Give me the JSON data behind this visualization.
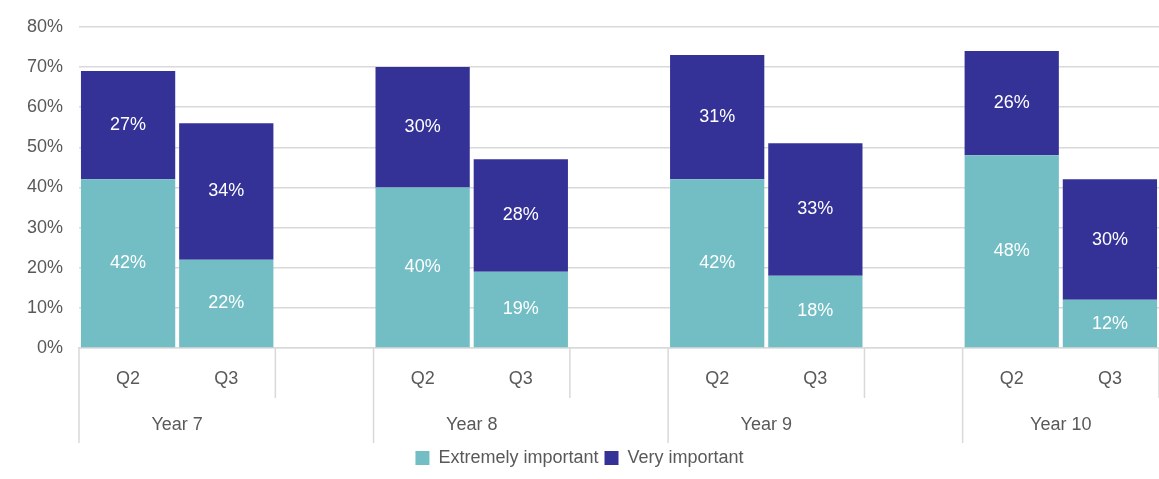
{
  "chart_data": {
    "type": "bar",
    "stacked": true,
    "categories": [
      "Q2",
      "Q3",
      null,
      "Q2",
      "Q3",
      null,
      "Q2",
      "Q3",
      null,
      "Q2",
      "Q3"
    ],
    "series": [
      {
        "name": "Extremely important",
        "color": "#72bec4",
        "values": [
          42,
          22,
          null,
          40,
          19,
          null,
          42,
          18,
          null,
          48,
          12
        ],
        "value_labels": [
          "42%",
          "22%",
          null,
          "40%",
          "19%",
          null,
          "42%",
          "18%",
          null,
          "48%",
          "12%"
        ]
      },
      {
        "name": "Very important",
        "color": "#343197",
        "values": [
          27,
          34,
          null,
          30,
          28,
          null,
          31,
          33,
          null,
          26,
          30
        ],
        "value_labels": [
          "27%",
          "34%",
          null,
          "30%",
          "28%",
          null,
          "31%",
          "33%",
          null,
          "26%",
          "30%"
        ]
      }
    ],
    "annotations": [
      "Year 7",
      "Year 8",
      "Year 9",
      "Year 10"
    ],
    "ylim": [
      0,
      80
    ],
    "yticks": [
      {
        "value": 0,
        "label": "0%"
      },
      {
        "value": 10,
        "label": "10%"
      },
      {
        "value": 20,
        "label": "20%"
      },
      {
        "value": 30,
        "label": "30%"
      },
      {
        "value": 40,
        "label": "40%"
      },
      {
        "value": 50,
        "label": "50%"
      },
      {
        "value": 60,
        "label": "60%"
      },
      {
        "value": 70,
        "label": "70%"
      },
      {
        "value": 80,
        "label": "80%"
      }
    ],
    "grid": "y",
    "legend": "bottom",
    "data_labels": true
  }
}
